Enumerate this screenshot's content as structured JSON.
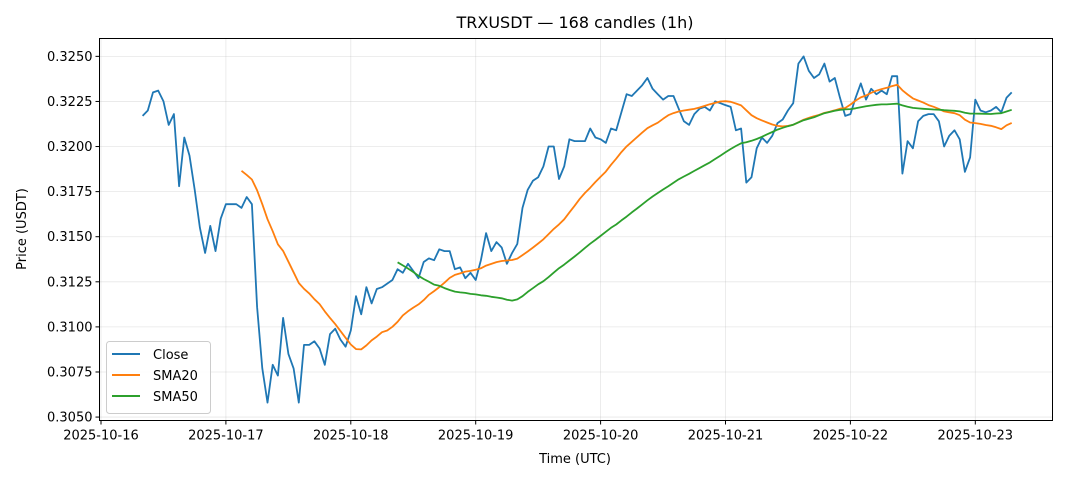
{
  "chart_data": {
    "type": "line",
    "title": "TRXUSDT — 168 candles (1h)",
    "xlabel": "Time (UTC)",
    "ylabel": "Price (USDT)",
    "start": "2025-10-16 08:00",
    "interval_hours": 1,
    "x_ticks": [
      "2025-10-16",
      "2025-10-17",
      "2025-10-18",
      "2025-10-19",
      "2025-10-20",
      "2025-10-21",
      "2025-10-22",
      "2025-10-23"
    ],
    "y_ticks": [
      "0.3050",
      "0.3075",
      "0.3100",
      "0.3125",
      "0.3150",
      "0.3175",
      "0.3200",
      "0.3225",
      "0.3250"
    ],
    "ylim": [
      0.30481,
      0.32599
    ],
    "grid": true,
    "legend_position": "lower-left",
    "series": [
      {
        "name": "Close",
        "color": "#1f77b4",
        "values": [
          0.3217,
          0.322,
          0.323,
          0.3231,
          0.3225,
          0.3212,
          0.3218,
          0.3178,
          0.3205,
          0.3195,
          0.3176,
          0.3155,
          0.3141,
          0.3156,
          0.3142,
          0.316,
          0.3168,
          0.3168,
          0.3168,
          0.3166,
          0.3172,
          0.3168,
          0.3111,
          0.3077,
          0.3058,
          0.3079,
          0.3073,
          0.3105,
          0.3085,
          0.3077,
          0.3058,
          0.309,
          0.309,
          0.3092,
          0.3088,
          0.3079,
          0.3096,
          0.3099,
          0.3093,
          0.3089,
          0.3098,
          0.3117,
          0.3107,
          0.3122,
          0.3113,
          0.3121,
          0.3122,
          0.3124,
          0.3126,
          0.3132,
          0.313,
          0.3135,
          0.3131,
          0.3127,
          0.3136,
          0.3138,
          0.3137,
          0.3143,
          0.3142,
          0.3142,
          0.3132,
          0.3133,
          0.3127,
          0.313,
          0.3126,
          0.3137,
          0.3152,
          0.3142,
          0.3147,
          0.3144,
          0.3135,
          0.3141,
          0.3146,
          0.3166,
          0.3176,
          0.3181,
          0.3183,
          0.3189,
          0.32,
          0.32,
          0.3182,
          0.3189,
          0.3204,
          0.3203,
          0.3203,
          0.3203,
          0.321,
          0.3205,
          0.3204,
          0.3202,
          0.321,
          0.3209,
          0.3219,
          0.3229,
          0.3228,
          0.3231,
          0.3234,
          0.3238,
          0.3232,
          0.3229,
          0.3226,
          0.3228,
          0.3228,
          0.3221,
          0.3214,
          0.3212,
          0.3218,
          0.3221,
          0.3222,
          0.322,
          0.3225,
          0.3224,
          0.3223,
          0.3222,
          0.3209,
          0.321,
          0.318,
          0.3183,
          0.3199,
          0.3205,
          0.3202,
          0.3206,
          0.3213,
          0.3215,
          0.322,
          0.3224,
          0.3246,
          0.325,
          0.3242,
          0.3238,
          0.324,
          0.3246,
          0.3236,
          0.3238,
          0.3227,
          0.3217,
          0.3218,
          0.3227,
          0.3235,
          0.3226,
          0.3232,
          0.3229,
          0.3231,
          0.3229,
          0.3239,
          0.3239,
          0.3185,
          0.3203,
          0.3199,
          0.3214,
          0.3217,
          0.3218,
          0.3218,
          0.3214,
          0.32,
          0.3206,
          0.3209,
          0.3204,
          0.3186,
          0.3194,
          0.3226,
          0.322,
          0.3219,
          0.322,
          0.3222,
          0.3219,
          0.3227,
          0.323
        ]
      },
      {
        "name": "SMA20",
        "color": "#ff7f0e",
        "window": 20,
        "source": "Close"
      },
      {
        "name": "SMA50",
        "color": "#2ca02c",
        "window": 50,
        "source": "Close"
      }
    ]
  }
}
